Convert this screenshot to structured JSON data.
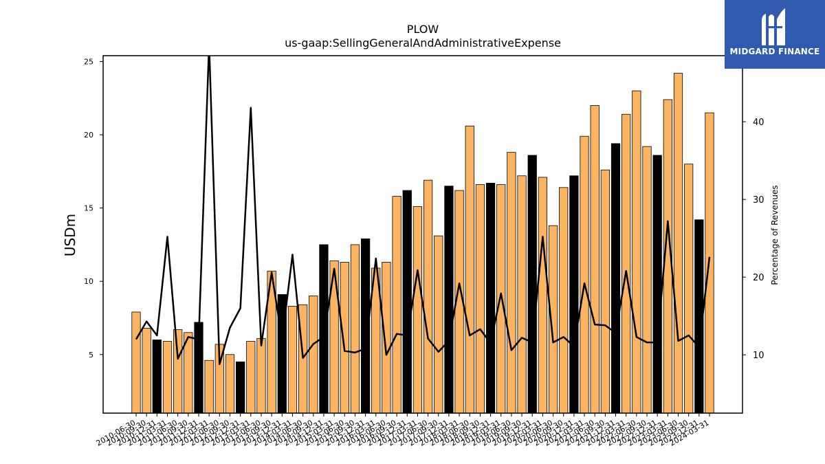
{
  "chart_data": {
    "type": "bar",
    "title": "PLOW",
    "subtitle": "us-gaap:SellingGeneralAndAdministrativeExpense",
    "ylabel": "USDm",
    "y2label": "Percentage of Revenues",
    "ylim": [
      1,
      25.4
    ],
    "y2lim": [
      2.5,
      48.5
    ],
    "yticks": [
      5,
      10,
      15,
      20,
      25
    ],
    "y2ticks": [
      10,
      20,
      30,
      40
    ],
    "colors": {
      "bar": "#fdb462",
      "highlight": "#000000",
      "line": "#000000"
    },
    "categories": [
      "2010-06-30",
      "2010-09-30",
      "2010-12-31",
      "2011-03-31",
      "2011-06-30",
      "2011-09-30",
      "2011-12-31",
      "2012-03-31",
      "2012-06-30",
      "2012-09-30",
      "2012-12-31",
      "2013-03-31",
      "2013-06-30",
      "2013-09-30",
      "2013-12-31",
      "2014-03-31",
      "2014-06-30",
      "2014-09-30",
      "2014-12-31",
      "2015-03-31",
      "2015-06-30",
      "2015-09-30",
      "2015-12-31",
      "2016-03-31",
      "2016-06-30",
      "2016-09-30",
      "2016-12-31",
      "2017-03-31",
      "2017-06-30",
      "2017-09-30",
      "2017-12-31",
      "2018-03-31",
      "2018-06-30",
      "2018-09-30",
      "2018-12-31",
      "2019-03-31",
      "2019-06-30",
      "2019-09-30",
      "2019-12-31",
      "2020-03-31",
      "2020-06-30",
      "2020-09-30",
      "2020-12-31",
      "2021-03-31",
      "2021-06-30",
      "2021-09-30",
      "2021-12-31",
      "2022-03-31",
      "2022-06-30",
      "2022-09-30",
      "2022-12-31",
      "2023-03-31",
      "2023-06-30",
      "2023-09-30",
      "2023-12-31",
      "2024-03-31"
    ],
    "x_tick_labels": [
      "2010-06-30",
      "2010-09-30",
      "2010-12-31",
      "2011-03-31",
      "2011-06-30",
      "2011-09-30",
      "2011-12-31",
      "2012-03-31",
      "2012-06-30",
      "2012-09-30",
      "2012-12-31",
      "2013-03-31",
      "2013-06-30",
      "2013-09-30",
      "2013-12-31",
      "2014-03-31",
      "2014-06-30",
      "2014-09-30",
      "2014-12-31",
      "2015-03-31",
      "2015-06-30",
      "2015-09-30",
      "2015-12-31",
      "2016-03-31",
      "2016-06-30",
      "2016-09-30",
      "2016-12-31",
      "2017-03-31",
      "2017-06-30",
      "2017-09-30",
      "2017-12-31",
      "2018-03-31",
      "2018-06-30",
      "2018-09-30",
      "2018-12-31",
      "2019-03-31",
      "2019-06-30",
      "2019-09-30",
      "2019-12-31",
      "2020-03-31",
      "2020-06-30",
      "2020-09-30",
      "2020-12-31",
      "2021-03-31",
      "2021-06-30",
      "2021-09-30",
      "2021-12-31",
      "2022-03-31",
      "2022-06-30",
      "2022-09-30",
      "2022-12-31",
      "2023-03-31",
      "2023-06-30",
      "2023-09-30",
      "2023-12-31",
      "2024-03-31"
    ],
    "series": [
      {
        "name": "SellingGeneralAndAdministrativeExpense",
        "type": "bar",
        "axis": "left",
        "values": [
          7.9,
          6.8,
          6.0,
          5.9,
          6.7,
          6.5,
          7.2,
          4.6,
          5.7,
          5.0,
          4.5,
          5.9,
          6.1,
          10.7,
          9.1,
          8.3,
          8.4,
          9.0,
          12.5,
          11.4,
          11.3,
          12.5,
          12.9,
          10.9,
          11.3,
          15.8,
          16.2,
          15.1,
          16.9,
          13.1,
          16.5,
          16.2,
          20.6,
          16.6,
          16.7,
          16.6,
          18.8,
          17.2,
          18.6,
          17.1,
          13.8,
          16.4,
          17.2,
          19.9,
          22.0,
          17.6,
          19.4,
          21.4,
          23.0,
          19.2,
          18.6,
          22.4,
          24.2,
          18.0,
          14.2,
          21.5
        ],
        "highlight": [
          false,
          false,
          true,
          false,
          false,
          false,
          true,
          false,
          false,
          false,
          true,
          false,
          false,
          false,
          true,
          false,
          false,
          false,
          true,
          false,
          false,
          false,
          true,
          false,
          false,
          false,
          true,
          false,
          false,
          false,
          true,
          false,
          false,
          false,
          true,
          false,
          false,
          false,
          true,
          false,
          false,
          false,
          true,
          false,
          false,
          false,
          true,
          false,
          false,
          false,
          true,
          false,
          false,
          false,
          true,
          false
        ]
      },
      {
        "name": "Percentage of Revenues",
        "type": "line",
        "axis": "right",
        "values": [
          12.0,
          14.3,
          12.5,
          25.2,
          9.5,
          12.3,
          12.0,
          50.0,
          8.8,
          13.5,
          16.0,
          41.8,
          11.2,
          20.6,
          11.9,
          22.9,
          9.6,
          11.4,
          12.3,
          21.1,
          10.5,
          10.3,
          10.8,
          22.4,
          10.0,
          12.7,
          12.5,
          20.9,
          12.1,
          10.4,
          11.8,
          19.2,
          12.5,
          13.3,
          11.5,
          17.9,
          10.6,
          12.2,
          11.6,
          25.2,
          11.6,
          12.3,
          11.1,
          19.2,
          13.9,
          13.8,
          12.8,
          20.8,
          12.3,
          11.6,
          11.6,
          27.2,
          11.8,
          12.5,
          11.0,
          22.6
        ]
      }
    ]
  },
  "logo": {
    "text": "MIDGARD FINANCE",
    "icon": "midgard-m-icon"
  }
}
